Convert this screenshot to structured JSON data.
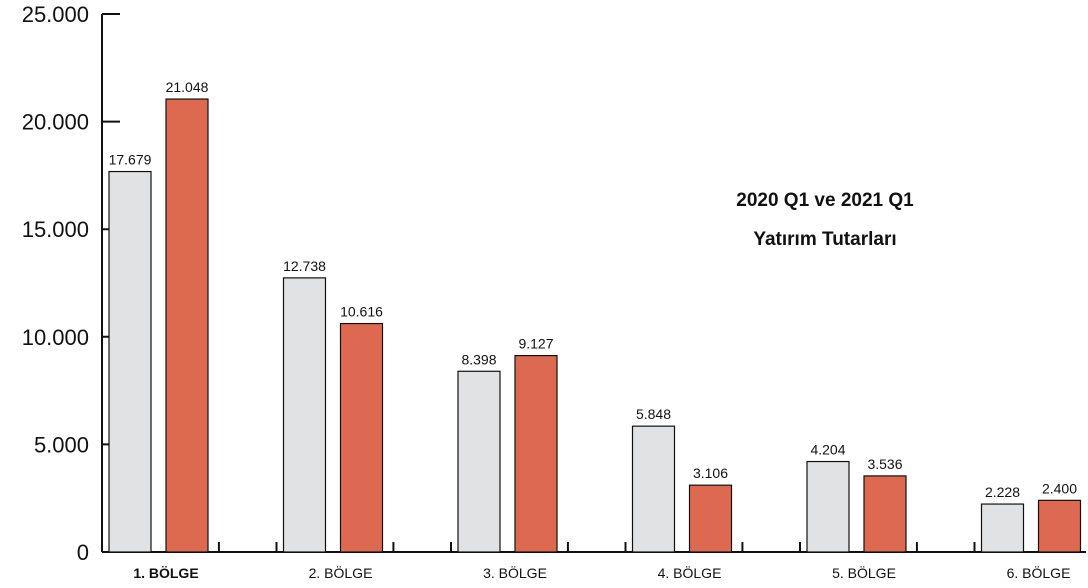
{
  "chart_data": {
    "type": "bar",
    "title_lines": [
      "2020 Q1 ve 2021 Q1",
      "Yatırım Tutarları"
    ],
    "categories": [
      "1. BÖLGE",
      "2. BÖLGE",
      "3. BÖLGE",
      "4. BÖLGE",
      "5. BÖLGE",
      "6. BÖLGE"
    ],
    "series": [
      {
        "values": [
          17679,
          12738,
          8398,
          5848,
          4204,
          2228
        ],
        "labels": [
          "17.679",
          "12.738",
          "8.398",
          "5.848",
          "4.204",
          "2.228"
        ],
        "color": "#e1e2e4"
      },
      {
        "values": [
          21048,
          10616,
          9127,
          3106,
          3536,
          2400
        ],
        "labels": [
          "21.048",
          "10.616",
          "9.127",
          "3.106",
          "3.536",
          "2.400"
        ],
        "color": "#dd6950"
      }
    ],
    "ylim": [
      0,
      25000
    ],
    "yticks": [
      0,
      5000,
      10000,
      15000,
      20000,
      25000
    ],
    "ytick_labels": [
      "0",
      "5.000",
      "10.000",
      "15.000",
      "20.000",
      "25.000"
    ],
    "grid": false,
    "legend": "none"
  }
}
